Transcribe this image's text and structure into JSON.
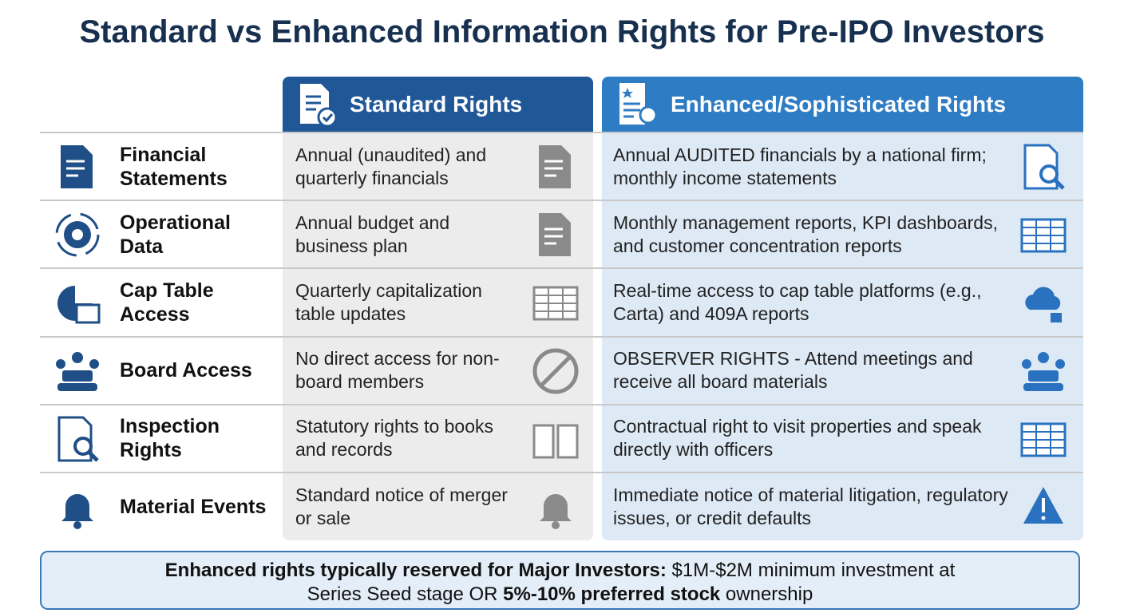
{
  "title": "Standard vs Enhanced Information Rights for Pre-IPO Investors",
  "columns": {
    "standard": "Standard Rights",
    "enhanced": "Enhanced/Sophisticated Rights"
  },
  "rows": [
    {
      "label": "Financial Statements",
      "standard": "Annual (unaudited) and quarterly financials",
      "enhanced": "Annual AUDITED financials by a national firm; monthly income statements"
    },
    {
      "label": "Operational Data",
      "standard": "Annual budget and business plan",
      "enhanced": "Monthly management reports, KPI dashboards, and customer concentration reports"
    },
    {
      "label": "Cap Table Access",
      "standard": "Quarterly capitalization table updates",
      "enhanced": "Real-time access to cap table platforms (e.g., Carta) and 409A reports"
    },
    {
      "label": "Board Access",
      "standard": "No direct access for non-board members",
      "enhanced": "OBSERVER RIGHTS - Attend meetings and receive all board materials"
    },
    {
      "label": "Inspection Rights",
      "standard": "Statutory rights to books and records",
      "enhanced": "Contractual right to visit properties and speak directly with officers"
    },
    {
      "label": "Material Events",
      "standard": "Standard notice of merger or sale",
      "enhanced": "Immediate notice of material litigation, regulatory issues, or credit defaults"
    }
  ],
  "footer": [
    "Enhanced rights typically reserved for Major Investors:",
    " $1M-$2M minimum investment at Series Seed stage OR ",
    "5%-10% preferred stock",
    " ownership"
  ]
}
